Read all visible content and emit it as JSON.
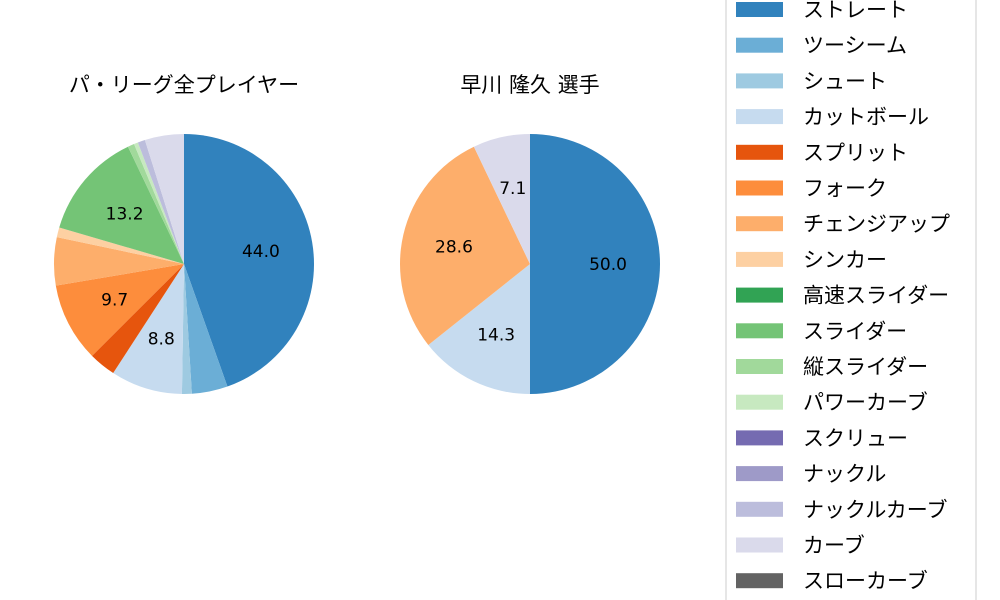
{
  "chart_data": [
    {
      "type": "pie",
      "title": "パ・リーグ全プレイヤー",
      "slices": [
        {
          "name": "ストレート",
          "value": 44.0,
          "label": "44.0",
          "color": "#3182bd"
        },
        {
          "name": "ツーシーム",
          "value": 4.4,
          "label": "",
          "color": "#6baed6"
        },
        {
          "name": "シュート",
          "value": 1.2,
          "label": "",
          "color": "#9ecae1"
        },
        {
          "name": "カットボール",
          "value": 8.8,
          "label": "8.8",
          "color": "#c6dbef"
        },
        {
          "name": "スプリット",
          "value": 3.3,
          "label": "",
          "color": "#e6550d"
        },
        {
          "name": "フォーク",
          "value": 9.7,
          "label": "9.7",
          "color": "#fd8d3c"
        },
        {
          "name": "チェンジアップ",
          "value": 5.9,
          "label": "",
          "color": "#fdae6b"
        },
        {
          "name": "シンカー",
          "value": 1.2,
          "label": "",
          "color": "#fdd0a2"
        },
        {
          "name": "スライダー",
          "value": 13.2,
          "label": "13.2",
          "color": "#74c476"
        },
        {
          "name": "縦スライダー",
          "value": 0.8,
          "label": "",
          "color": "#a1d99b"
        },
        {
          "name": "パワーカーブ",
          "value": 0.5,
          "label": "",
          "color": "#c7e9c0"
        },
        {
          "name": "ナックルカーブ",
          "value": 0.9,
          "label": "",
          "color": "#bcbddc"
        },
        {
          "name": "カーブ",
          "value": 4.8,
          "label": "",
          "color": "#dadaeb"
        }
      ]
    },
    {
      "type": "pie",
      "title": "早川 隆久  選手",
      "slices": [
        {
          "name": "ストレート",
          "value": 50.0,
          "label": "50.0",
          "color": "#3182bd"
        },
        {
          "name": "カットボール",
          "value": 14.3,
          "label": "14.3",
          "color": "#c6dbef"
        },
        {
          "name": "チェンジアップ",
          "value": 28.6,
          "label": "28.6",
          "color": "#fdae6b"
        },
        {
          "name": "カーブ",
          "value": 7.1,
          "label": "7.1",
          "color": "#dadaeb"
        }
      ]
    }
  ],
  "legend": {
    "placement": "right",
    "items": [
      {
        "label": "ストレート",
        "color": "#3182bd"
      },
      {
        "label": "ツーシーム",
        "color": "#6baed6"
      },
      {
        "label": "シュート",
        "color": "#9ecae1"
      },
      {
        "label": "カットボール",
        "color": "#c6dbef"
      },
      {
        "label": "スプリット",
        "color": "#e6550d"
      },
      {
        "label": "フォーク",
        "color": "#fd8d3c"
      },
      {
        "label": "チェンジアップ",
        "color": "#fdae6b"
      },
      {
        "label": "シンカー",
        "color": "#fdd0a2"
      },
      {
        "label": "高速スライダー",
        "color": "#31a354"
      },
      {
        "label": "スライダー",
        "color": "#74c476"
      },
      {
        "label": "縦スライダー",
        "color": "#a1d99b"
      },
      {
        "label": "パワーカーブ",
        "color": "#c7e9c0"
      },
      {
        "label": "スクリュー",
        "color": "#756bb1"
      },
      {
        "label": "ナックル",
        "color": "#9e9ac8"
      },
      {
        "label": "ナックルカーブ",
        "color": "#bcbddc"
      },
      {
        "label": "カーブ",
        "color": "#dadaeb"
      },
      {
        "label": "スローカーブ",
        "color": "#636363"
      }
    ]
  }
}
